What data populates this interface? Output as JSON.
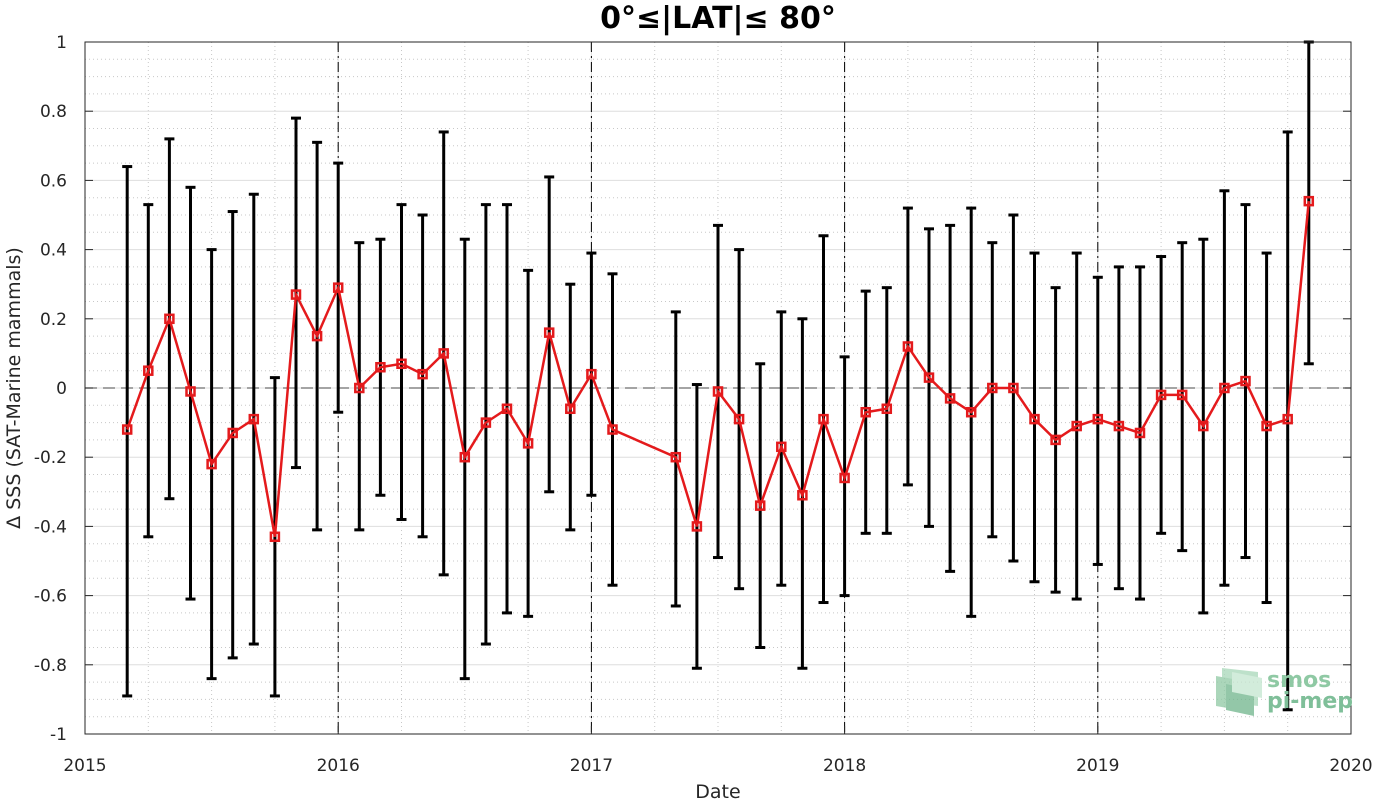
{
  "chart_data": {
    "type": "line",
    "title": "0°≤|LAT|≤ 80°",
    "xlabel": "Date",
    "ylabel": "Δ SSS (SAT-Marine mammals)",
    "xlim": [
      2015,
      2020
    ],
    "ylim": [
      -1,
      1
    ],
    "x_ticks": [
      "2015",
      "2016",
      "2017",
      "2018",
      "2019",
      "2020"
    ],
    "y_ticks": [
      "1",
      "0.8",
      "0.6",
      "0.4",
      "0.2",
      "0",
      "-0.2",
      "-0.4",
      "-0.6",
      "-0.8",
      "-1"
    ],
    "grid": true,
    "minor_grid": true,
    "year_dividers": [
      2016,
      2017,
      2018,
      2019
    ],
    "zero_line": 0,
    "series": [
      {
        "color": "#e41a1c",
        "errorbar_color": "#000000",
        "marker": "square",
        "points": [
          {
            "x": "2015-03",
            "y": -0.12,
            "low": -0.89,
            "high": 0.64
          },
          {
            "x": "2015-04",
            "y": 0.05,
            "low": -0.43,
            "high": 0.53
          },
          {
            "x": "2015-05",
            "y": 0.2,
            "low": -0.32,
            "high": 0.72
          },
          {
            "x": "2015-06",
            "y": -0.01,
            "low": -0.61,
            "high": 0.58
          },
          {
            "x": "2015-07",
            "y": -0.22,
            "low": -0.84,
            "high": 0.4
          },
          {
            "x": "2015-08",
            "y": -0.13,
            "low": -0.78,
            "high": 0.51
          },
          {
            "x": "2015-09",
            "y": -0.09,
            "low": -0.74,
            "high": 0.56
          },
          {
            "x": "2015-10",
            "y": -0.43,
            "low": -0.89,
            "high": 0.03
          },
          {
            "x": "2015-11",
            "y": 0.27,
            "low": -0.23,
            "high": 0.78
          },
          {
            "x": "2015-12",
            "y": 0.15,
            "low": -0.41,
            "high": 0.71
          },
          {
            "x": "2016-01",
            "y": 0.29,
            "low": -0.07,
            "high": 0.65
          },
          {
            "x": "2016-02",
            "y": 0.0,
            "low": -0.41,
            "high": 0.42
          },
          {
            "x": "2016-03",
            "y": 0.06,
            "low": -0.31,
            "high": 0.43
          },
          {
            "x": "2016-04",
            "y": 0.07,
            "low": -0.38,
            "high": 0.53
          },
          {
            "x": "2016-05",
            "y": 0.04,
            "low": -0.43,
            "high": 0.5
          },
          {
            "x": "2016-06",
            "y": 0.1,
            "low": -0.54,
            "high": 0.74
          },
          {
            "x": "2016-07",
            "y": -0.2,
            "low": -0.84,
            "high": 0.43
          },
          {
            "x": "2016-08",
            "y": -0.1,
            "low": -0.74,
            "high": 0.53
          },
          {
            "x": "2016-09",
            "y": -0.06,
            "low": -0.65,
            "high": 0.53
          },
          {
            "x": "2016-10",
            "y": -0.16,
            "low": -0.66,
            "high": 0.34
          },
          {
            "x": "2016-11",
            "y": 0.16,
            "low": -0.3,
            "high": 0.61
          },
          {
            "x": "2016-12",
            "y": -0.06,
            "low": -0.41,
            "high": 0.3
          },
          {
            "x": "2017-01",
            "y": 0.04,
            "low": -0.31,
            "high": 0.39
          },
          {
            "x": "2017-02",
            "y": -0.12,
            "low": -0.57,
            "high": 0.33
          },
          {
            "x": "2017-05",
            "y": -0.2,
            "low": -0.63,
            "high": 0.22
          },
          {
            "x": "2017-06",
            "y": -0.4,
            "low": -0.81,
            "high": 0.01
          },
          {
            "x": "2017-07",
            "y": -0.01,
            "low": -0.49,
            "high": 0.47
          },
          {
            "x": "2017-08",
            "y": -0.09,
            "low": -0.58,
            "high": 0.4
          },
          {
            "x": "2017-09",
            "y": -0.34,
            "low": -0.75,
            "high": 0.07
          },
          {
            "x": "2017-10",
            "y": -0.17,
            "low": -0.57,
            "high": 0.22
          },
          {
            "x": "2017-11",
            "y": -0.31,
            "low": -0.81,
            "high": 0.2
          },
          {
            "x": "2017-12",
            "y": -0.09,
            "low": -0.62,
            "high": 0.44
          },
          {
            "x": "2018-01",
            "y": -0.26,
            "low": -0.6,
            "high": 0.09
          },
          {
            "x": "2018-02",
            "y": -0.07,
            "low": -0.42,
            "high": 0.28
          },
          {
            "x": "2018-03",
            "y": -0.06,
            "low": -0.42,
            "high": 0.29
          },
          {
            "x": "2018-04",
            "y": 0.12,
            "low": -0.28,
            "high": 0.52
          },
          {
            "x": "2018-05",
            "y": 0.03,
            "low": -0.4,
            "high": 0.46
          },
          {
            "x": "2018-06",
            "y": -0.03,
            "low": -0.53,
            "high": 0.47
          },
          {
            "x": "2018-07",
            "y": -0.07,
            "low": -0.66,
            "high": 0.52
          },
          {
            "x": "2018-08",
            "y": 0.0,
            "low": -0.43,
            "high": 0.42
          },
          {
            "x": "2018-09",
            "y": 0.0,
            "low": -0.5,
            "high": 0.5
          },
          {
            "x": "2018-10",
            "y": -0.09,
            "low": -0.56,
            "high": 0.39
          },
          {
            "x": "2018-11",
            "y": -0.15,
            "low": -0.59,
            "high": 0.29
          },
          {
            "x": "2018-12",
            "y": -0.11,
            "low": -0.61,
            "high": 0.39
          },
          {
            "x": "2019-01",
            "y": -0.09,
            "low": -0.51,
            "high": 0.32
          },
          {
            "x": "2019-02",
            "y": -0.11,
            "low": -0.58,
            "high": 0.35
          },
          {
            "x": "2019-03",
            "y": -0.13,
            "low": -0.61,
            "high": 0.35
          },
          {
            "x": "2019-04",
            "y": -0.02,
            "low": -0.42,
            "high": 0.38
          },
          {
            "x": "2019-05",
            "y": -0.02,
            "low": -0.47,
            "high": 0.42
          },
          {
            "x": "2019-06",
            "y": -0.11,
            "low": -0.65,
            "high": 0.43
          },
          {
            "x": "2019-07",
            "y": 0.0,
            "low": -0.57,
            "high": 0.57
          },
          {
            "x": "2019-08",
            "y": 0.02,
            "low": -0.49,
            "high": 0.53
          },
          {
            "x": "2019-09",
            "y": -0.11,
            "low": -0.62,
            "high": 0.39
          },
          {
            "x": "2019-10",
            "y": -0.09,
            "low": -0.93,
            "high": 0.74
          },
          {
            "x": "2019-11",
            "y": 0.54,
            "low": 0.07,
            "high": 1.0
          }
        ]
      }
    ]
  },
  "logo": {
    "line1": "smos",
    "line2": "pi-mep",
    "color": "#7fbf99"
  }
}
